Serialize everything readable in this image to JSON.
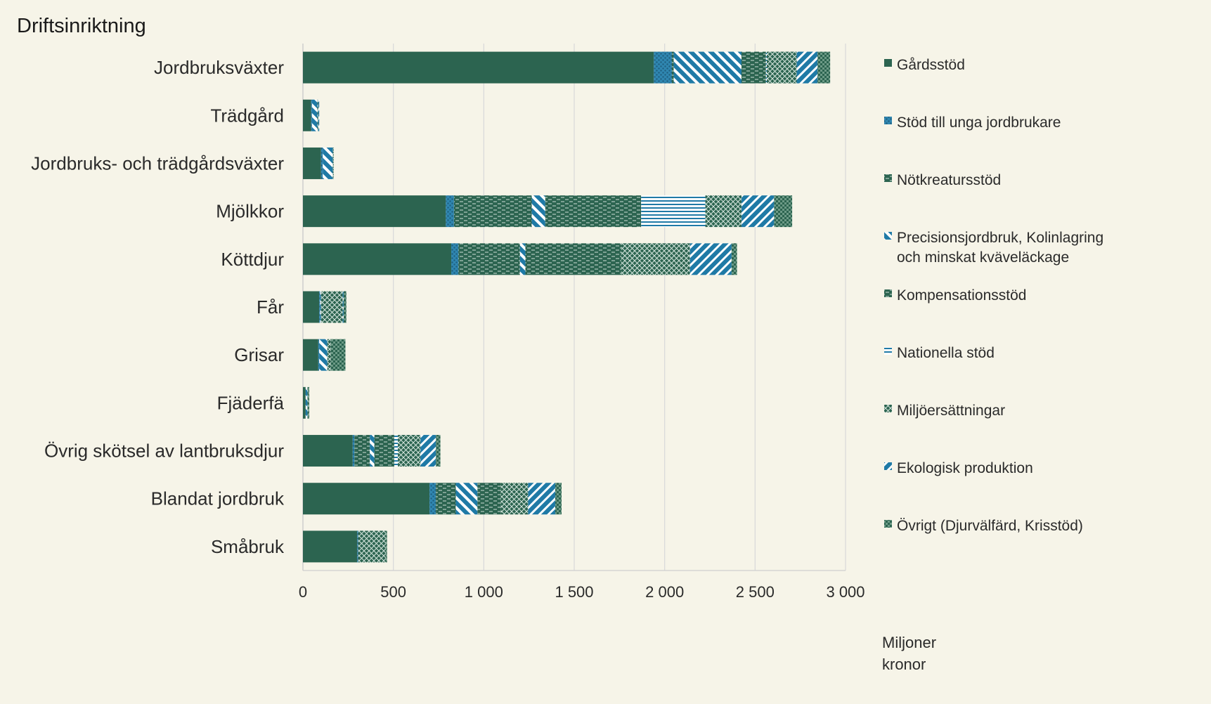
{
  "chart_data": {
    "type": "bar",
    "orientation": "horizontal",
    "stacked": true,
    "title": "Driftsinriktning",
    "xlabel": "Miljoner kronor",
    "xlim": [
      0,
      3000
    ],
    "xticks": [
      0,
      500,
      1000,
      1500,
      2000,
      2500,
      3000
    ],
    "xtick_labels": [
      "0",
      "500",
      "1 000",
      "1 500",
      "2 000",
      "2 500",
      "3 000"
    ],
    "grid": "vertical",
    "legend_position": "right",
    "categories": [
      "Jordbruksväxter",
      "Trädgård",
      "Jordbruks- och trädgårdsväxter",
      "Mjölkkor",
      "Köttdjur",
      "Får",
      "Grisar",
      "Fjäderfä",
      "Övrig skötsel av lantbruksdjur",
      "Blandat jordbruk",
      "Småbruk"
    ],
    "series": [
      {
        "name": "Gårdsstöd",
        "pattern": "solid",
        "values": [
          1940,
          45,
          100,
          790,
          820,
          90,
          85,
          15,
          275,
          700,
          300
        ]
      },
      {
        "name": "Stöd till unga jordbrukare",
        "pattern": "dots",
        "values": [
          100,
          5,
          10,
          45,
          40,
          5,
          5,
          0,
          10,
          35,
          5
        ]
      },
      {
        "name": "Nötkreatursstöd",
        "pattern": "dashes",
        "values": [
          10,
          0,
          0,
          430,
          340,
          0,
          0,
          0,
          85,
          110,
          0
        ]
      },
      {
        "name": "Precisionsjordbruk, Kolinlagring och minskat kväveläckage",
        "pattern": "wide-diagonal",
        "values": [
          375,
          30,
          55,
          75,
          30,
          5,
          45,
          10,
          25,
          120,
          0
        ]
      },
      {
        "name": "Kompensationsstöd",
        "pattern": "dashes",
        "values": [
          135,
          0,
          0,
          530,
          530,
          0,
          0,
          0,
          110,
          130,
          0
        ]
      },
      {
        "name": "Nationella stöd",
        "pattern": "horizontal",
        "values": [
          5,
          0,
          0,
          355,
          0,
          0,
          0,
          0,
          20,
          0,
          0
        ]
      },
      {
        "name": "Miljöersättningar",
        "pattern": "crosshatch",
        "values": [
          165,
          5,
          5,
          200,
          380,
          120,
          20,
          5,
          125,
          150,
          155
        ]
      },
      {
        "name": "Ekologisk produktion",
        "pattern": "back-diagonal",
        "values": [
          115,
          5,
          0,
          180,
          230,
          5,
          0,
          0,
          85,
          150,
          0
        ]
      },
      {
        "name": "Övrigt (Djurvälfärd, Krisstöd)",
        "pattern": "checker",
        "values": [
          70,
          0,
          0,
          100,
          30,
          15,
          80,
          5,
          25,
          35,
          5
        ]
      }
    ],
    "colors": {
      "dark_green": "#2c6450",
      "blue": "#1f7aa6",
      "background": "#f6f4e8",
      "grid": "#d9d9d9"
    }
  }
}
